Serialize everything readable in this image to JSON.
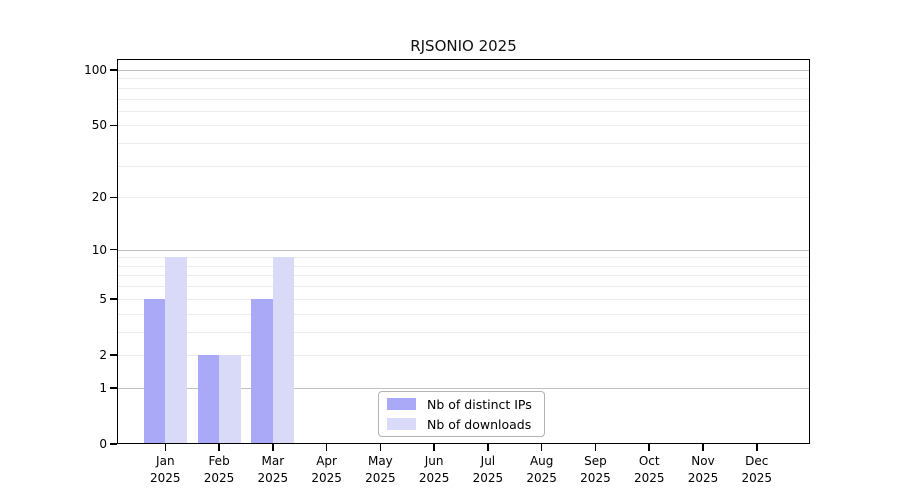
{
  "title": "RJSONIO 2025",
  "colors": {
    "background": "#ffffff",
    "axis": "#000000",
    "text": "#000000",
    "grid_major": "#c0c0c0",
    "grid_minor": "#ececec",
    "legend_border": "#b3b3b3",
    "distinct_ips": "#a9a9f8",
    "downloads": "#d9d9f8"
  },
  "legend": {
    "items": [
      {
        "label": "Nb of distinct IPs"
      },
      {
        "label": "Nb of downloads"
      }
    ]
  },
  "chart_data": {
    "type": "bar",
    "title": "RJSONIO 2025",
    "categories": [
      "Jan",
      "Feb",
      "Mar",
      "Apr",
      "May",
      "Jun",
      "Jul",
      "Aug",
      "Sep",
      "Oct",
      "Nov",
      "Dec"
    ],
    "category_year": "2025",
    "series": [
      {
        "name": "Nb of distinct IPs",
        "color": "#a9a9f8",
        "values": [
          5,
          2,
          5,
          0,
          0,
          0,
          0,
          0,
          0,
          0,
          0,
          0
        ]
      },
      {
        "name": "Nb of downloads",
        "color": "#d9d9f8",
        "values": [
          9,
          2,
          9,
          0,
          0,
          0,
          0,
          0,
          0,
          0,
          0,
          0
        ]
      }
    ],
    "y_scale": "log1p",
    "ylim": [
      0,
      115
    ],
    "y_ticks": [
      0,
      1,
      2,
      5,
      10,
      20,
      50,
      100
    ],
    "gridlines": {
      "major": [
        1,
        10,
        100
      ],
      "minor": [
        2,
        3,
        4,
        5,
        6,
        7,
        8,
        9,
        20,
        30,
        40,
        50,
        60,
        70,
        80,
        90
      ]
    },
    "legend_position": "bottom-center",
    "xlabel": "",
    "ylabel": ""
  }
}
